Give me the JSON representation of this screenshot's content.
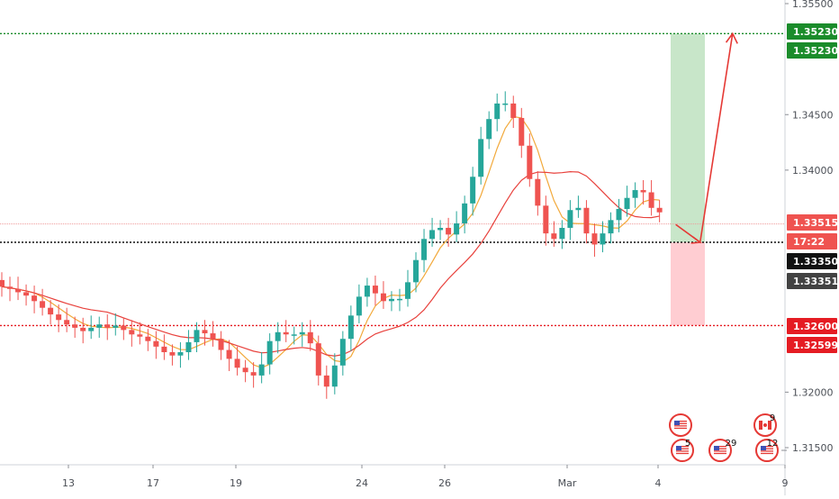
{
  "chart_data": {
    "type": "candlestick",
    "x_ticks": [
      "13",
      "17",
      "19",
      "24",
      "26",
      "Mar",
      "4",
      "9"
    ],
    "y_ticks": [
      "1.35500",
      "1.34500",
      "1.34000",
      "1.32000",
      "1.31500"
    ],
    "ylim": [
      1.3125,
      1.3555
    ],
    "price_labels": {
      "target_top": "1.35230",
      "target_bottom": "1.35230",
      "current_price": "1.33515",
      "countdown": "17:22",
      "entry_price": "1.33350",
      "entry_alt": "1.33351",
      "stop_price": "1.32600",
      "stop_alt": "1.32599"
    },
    "levels": {
      "target": 1.3523,
      "current": 1.33515,
      "entry": 1.3335,
      "stop": 1.326
    },
    "trade_box": {
      "entry": 1.3335,
      "target": 1.3523,
      "stop": 1.326
    },
    "projection_path": [
      [
        83.0,
        1.3351
      ],
      [
        86.0,
        1.3335
      ],
      [
        90.0,
        1.3523
      ],
      [
        89.2,
        1.3515
      ],
      [
        90.0,
        1.3523
      ],
      [
        90.6,
        1.3514
      ]
    ],
    "close_prices": [
      1.3295,
      1.3293,
      1.329,
      1.3287,
      1.3282,
      1.3276,
      1.327,
      1.3265,
      1.3261,
      1.3258,
      1.3255,
      1.3258,
      1.3261,
      1.3258,
      1.326,
      1.3256,
      1.3252,
      1.325,
      1.3246,
      1.3241,
      1.3236,
      1.3233,
      1.3236,
      1.3245,
      1.3256,
      1.3253,
      1.3248,
      1.3238,
      1.323,
      1.3222,
      1.3218,
      1.3215,
      1.3225,
      1.3246,
      1.3254,
      1.3252,
      1.3252,
      1.3254,
      1.3244,
      1.3215,
      1.3205,
      1.3224,
      1.3248,
      1.3269,
      1.3286,
      1.3296,
      1.3289,
      1.3282,
      1.3284,
      1.3284,
      1.3299,
      1.3319,
      1.3338,
      1.3346,
      1.3348,
      1.3342,
      1.3352,
      1.337,
      1.3394,
      1.3428,
      1.3446,
      1.346,
      1.346,
      1.3447,
      1.3422,
      1.3392,
      1.3368,
      1.3343,
      1.3338,
      1.3348,
      1.3364,
      1.3366,
      1.3343,
      1.3333,
      1.3343,
      1.3355,
      1.3365,
      1.3375,
      1.3382,
      1.338,
      1.3366,
      1.3362
    ],
    "series": [
      {
        "role": "fast-moving-average",
        "color": "#f2a93b"
      },
      {
        "role": "slow-moving-average",
        "color": "#e8413c"
      }
    ],
    "events": {
      "first_row": [
        "US",
        "US",
        "CA"
      ],
      "second_row": [
        "5",
        "29",
        "12"
      ],
      "ca_top_count": "9"
    },
    "colors": {
      "up": "#26a69a",
      "down": "#ef5350",
      "target_zone": "#c8e6c9",
      "stop_zone": "#ffcdd2",
      "green_line": "#1b8c2b",
      "red_line": "#e51c23",
      "black_line": "#111111"
    },
    "grid": false,
    "legend": "none"
  }
}
